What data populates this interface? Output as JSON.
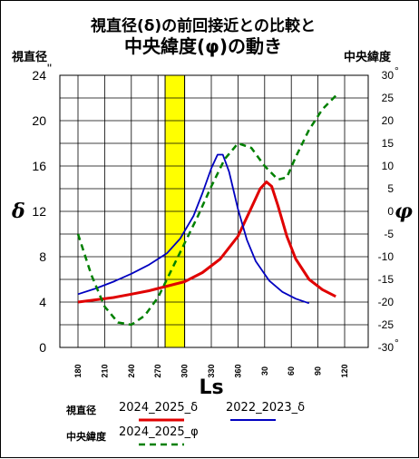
{
  "chart_data": {
    "type": "line",
    "title": "視直径(δ)の前回接近との比較と",
    "subtitle": "中央緯度(φ)の動き",
    "ylabel_left": "視直径",
    "ylabel_right": "中央緯度",
    "left_symbol": "δ",
    "right_symbol": "φ",
    "xlabel": "Ls",
    "ylim_left": [
      0,
      24
    ],
    "ylim_right": [
      -30,
      30
    ],
    "left_ticks": [
      "0",
      "4",
      "8",
      "12",
      "16",
      "20",
      "24"
    ],
    "left_unit_mark": "\"",
    "right_ticks": [
      "-30",
      "-25",
      "-20",
      "-15",
      "-10",
      "-5",
      "0",
      "5",
      "10",
      "15",
      "20",
      "25",
      "30"
    ],
    "right_unit_mark": "°",
    "x_ticks": [
      "180",
      "210",
      "240",
      "270",
      "300",
      "330",
      "360",
      "30",
      "60",
      "90",
      "120"
    ],
    "x_range": [
      180,
      480
    ],
    "highlight": {
      "from": 278,
      "to": 300,
      "color": "#ffff00"
    },
    "vertical_lines": [
      278,
      300
    ],
    "grid": true,
    "series": [
      {
        "name": "2024_2025_δ",
        "axis": "left",
        "color": "#e00000",
        "style": "solid",
        "x": [
          180,
          200,
          220,
          240,
          260,
          280,
          300,
          320,
          340,
          360,
          375,
          385,
          392,
          398,
          405,
          415,
          425,
          440,
          455,
          470
        ],
        "y": [
          4.0,
          4.2,
          4.4,
          4.7,
          5.0,
          5.4,
          5.8,
          6.6,
          7.8,
          9.8,
          12.3,
          14.0,
          14.6,
          14.2,
          12.5,
          9.8,
          7.8,
          6.0,
          5.1,
          4.5
        ]
      },
      {
        "name": "2022_2023_δ",
        "axis": "left",
        "color": "#0000c0",
        "style": "solid",
        "x": [
          180,
          200,
          220,
          240,
          260,
          280,
          295,
          310,
          320,
          330,
          337,
          343,
          350,
          360,
          370,
          380,
          395,
          410,
          425,
          440
        ],
        "y": [
          4.7,
          5.2,
          5.8,
          6.5,
          7.3,
          8.3,
          9.6,
          11.6,
          13.6,
          15.8,
          17.0,
          17.0,
          15.5,
          12.2,
          9.5,
          7.6,
          5.9,
          4.9,
          4.3,
          3.9
        ]
      },
      {
        "name": "2024_2025_φ",
        "axis": "right",
        "color": "#008000",
        "style": "dashed",
        "x": [
          180,
          195,
          210,
          225,
          240,
          255,
          270,
          285,
          300,
          315,
          330,
          345,
          360,
          375,
          390,
          405,
          415,
          425,
          440,
          455,
          470
        ],
        "y": [
          -5,
          -14,
          -21,
          -24.5,
          -25,
          -23,
          -19,
          -13,
          -7,
          -1,
          5.5,
          11.5,
          15,
          14,
          10,
          7,
          7.5,
          12,
          18,
          22.5,
          25.5
        ]
      }
    ],
    "legend": {
      "diameter_label": "視直径",
      "latitude_label": "中央緯度",
      "items": [
        "2024_2025_δ",
        "2022_2023_δ",
        "2024_2025_φ"
      ]
    }
  }
}
